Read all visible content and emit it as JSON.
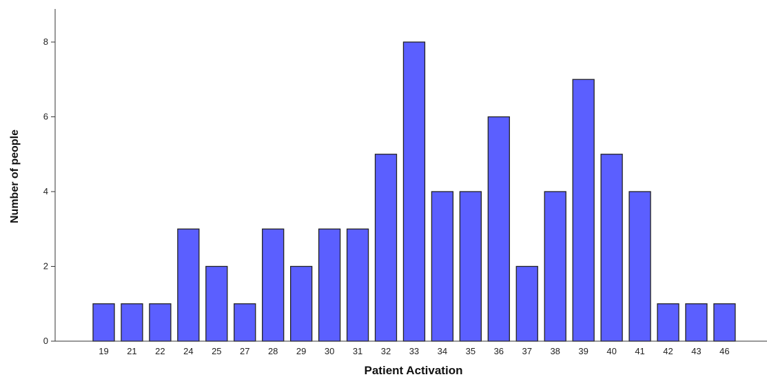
{
  "chart_data": {
    "type": "bar",
    "title": "",
    "xlabel": "Patient Activation",
    "ylabel": "Number of people",
    "categories": [
      "19",
      "21",
      "22",
      "24",
      "25",
      "27",
      "28",
      "29",
      "30",
      "31",
      "32",
      "33",
      "34",
      "35",
      "36",
      "37",
      "38",
      "39",
      "40",
      "41",
      "42",
      "43",
      "46"
    ],
    "values": [
      1,
      1,
      1,
      3,
      2,
      1,
      3,
      2,
      3,
      3,
      5,
      8,
      4,
      4,
      6,
      2,
      4,
      7,
      5,
      4,
      1,
      1,
      1
    ],
    "ylim": [
      0,
      8.9
    ],
    "yticks": [
      0,
      2,
      4,
      6,
      8
    ],
    "grid": false,
    "legend": "none",
    "bar_color": "#5b5fff",
    "bar_edge_color": "#222222"
  }
}
